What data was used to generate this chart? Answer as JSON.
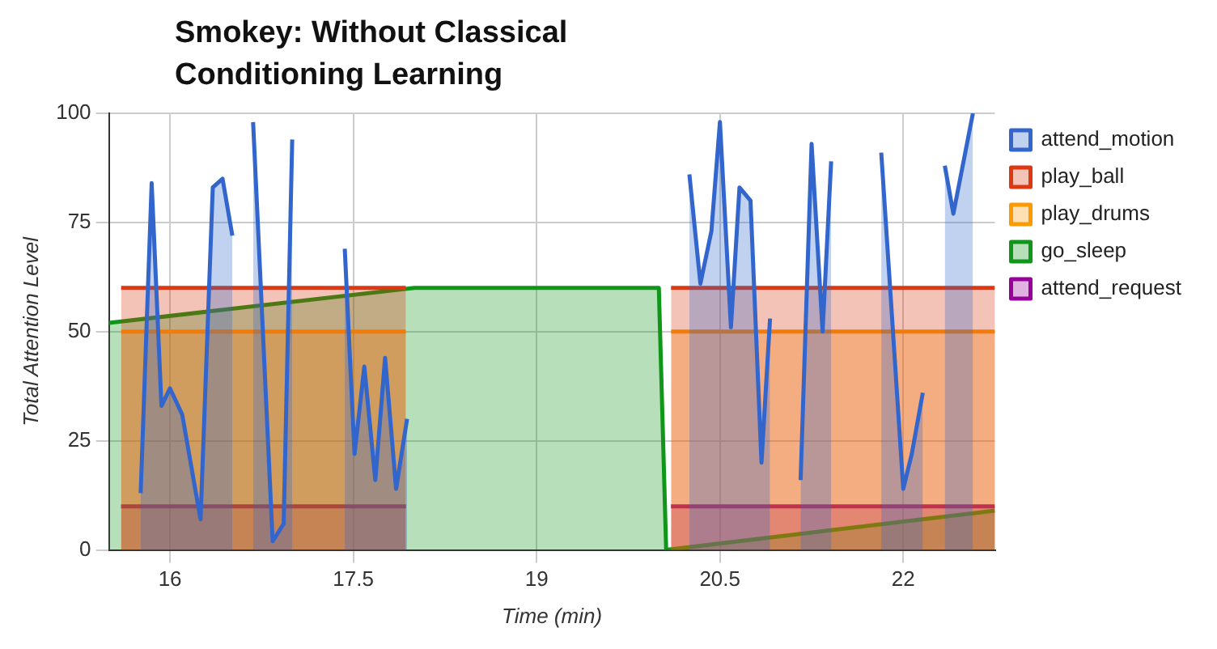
{
  "chart_data": {
    "type": "area",
    "title": "Smokey: Without Classical Conditioning Learning",
    "xlabel": "Time (min)",
    "ylabel": "Total Attention Level",
    "xlim": [
      15.5,
      22.75
    ],
    "xticks": [
      16,
      17.5,
      19,
      20.5,
      22
    ],
    "ylim": [
      0,
      100
    ],
    "yticks": [
      0,
      25,
      50,
      75,
      100
    ],
    "grid": true,
    "legend": "right",
    "marker": "none",
    "line_style": "solid",
    "series": [
      {
        "name": "attend_motion",
        "color": "#3366cc",
        "x": [
          15.76,
          15.85,
          15.93,
          16.0,
          16.1,
          16.25,
          16.35,
          16.43,
          16.51,
          16.6,
          16.68,
          16.84,
          16.93,
          17.0,
          17.2,
          17.43,
          17.51,
          17.59,
          17.68,
          17.76,
          17.85,
          17.94,
          19.0,
          20.25,
          20.34,
          20.43,
          20.5,
          20.59,
          20.66,
          20.75,
          20.84,
          20.91,
          21.05,
          21.16,
          21.25,
          21.34,
          21.41,
          21.6,
          21.82,
          22.0,
          22.07,
          22.16,
          22.25,
          22.34,
          22.41,
          22.57
        ],
        "values": [
          13,
          84,
          33,
          37,
          31,
          7,
          83,
          85,
          72,
          null,
          98,
          2,
          6,
          94,
          null,
          69,
          22,
          42,
          16,
          44,
          14,
          30,
          null,
          86,
          61,
          73,
          98,
          51,
          83,
          80,
          20,
          53,
          null,
          16,
          93,
          50,
          89,
          null,
          91,
          14,
          22,
          36,
          null,
          88,
          77,
          100
        ]
      },
      {
        "name": "play_ball",
        "color": "#dc3912",
        "x": [
          15.6,
          17.93,
          19.0,
          20.1,
          22.75
        ],
        "values": [
          60,
          60,
          null,
          60,
          60
        ]
      },
      {
        "name": "play_drums",
        "color": "#ff9900",
        "x": [
          15.6,
          17.93,
          19.0,
          20.1,
          22.75
        ],
        "values": [
          50,
          50,
          null,
          50,
          50
        ]
      },
      {
        "name": "go_sleep",
        "color": "#109618",
        "x": [
          15.5,
          18.0,
          20.0,
          20.06,
          22.75
        ],
        "values": [
          52,
          60,
          60,
          0,
          9
        ]
      },
      {
        "name": "attend_request",
        "color": "#990099",
        "x": [
          15.6,
          17.93,
          19.0,
          20.1,
          22.75
        ],
        "values": [
          10,
          10,
          null,
          10,
          10
        ]
      }
    ]
  }
}
